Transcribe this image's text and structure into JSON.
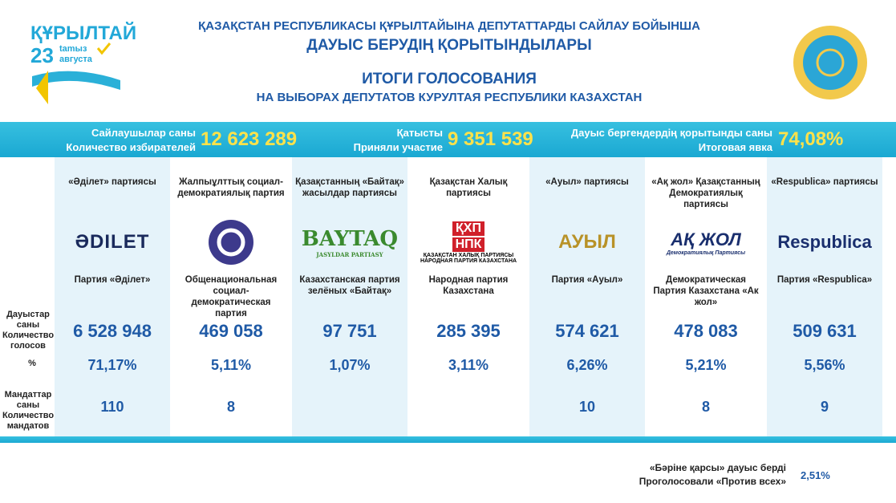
{
  "header": {
    "logo_title": "ҚҰРЫЛТАЙ",
    "logo_day": "23",
    "logo_month_kz": "tamыз",
    "logo_month_ru": "августа",
    "title_kz": [
      "ҚАЗАҚСТАН РЕСПУБЛИКАСЫ ҚҰРЫЛТАЙЫНА ДЕПУТАТТАРДЫ САЙЛАУ БОЙЫНША",
      "ДАУЫС БЕРУДІҢ ҚОРЫТЫНДЫЛАРЫ"
    ],
    "title_ru": [
      "ИТОГИ ГОЛОСОВАНИЯ",
      "НА ВЫБОРАХ ДЕПУТАТОВ КУРУЛТАЯ РЕСПУБЛИКИ КАЗАХСТАН"
    ]
  },
  "stats": [
    {
      "label_kz": "Сайлаушылар саны",
      "label_ru": "Количество избирателей",
      "value": "12 623 289"
    },
    {
      "label_kz": "Қатысты",
      "label_ru": "Приняли участие",
      "value": "9 351 539"
    },
    {
      "label_kz": "Дауыс бергендердің қорытынды саны",
      "label_ru": "Итоговая явка",
      "value": "74,08%"
    }
  ],
  "row_labels": {
    "votes_kz": "Дауыстар саны",
    "votes_ru": "Количество голосов",
    "percent": "%",
    "mandates_kz": "Мандаттар саны",
    "mandates_ru": "Количество мандатов"
  },
  "parties": [
    {
      "name_kz": "«Әділет» партиясы",
      "logo": {
        "marks": [
          "ƏDILET"
        ]
      },
      "name_ru": "Партия «Әділет»",
      "votes": "6 528 948",
      "percent": "71,17%",
      "mandates": "110"
    },
    {
      "name_kz": "Жалпыұлттық социал-демократиялық партия",
      "name_ru": "Общенациональная социал-демократическая партия",
      "votes": "469 058",
      "percent": "5,11%",
      "mandates": "8"
    },
    {
      "name_kz": "Қазақстанның «Байтақ» жасылдар партиясы",
      "logo": {
        "marks": [
          "BAYTAQ"
        ],
        "sub": [
          "JASYLDAR PARTIASY"
        ]
      },
      "name_ru": "Казахстанская партия зелёных «Байтақ»",
      "votes": "97 751",
      "percent": "1,07%"
    },
    {
      "name_kz": "Қазақстан Халық партиясы",
      "logo": {
        "marks": [
          "ҚХП",
          "НПК"
        ],
        "sub": [
          "ҚАЗАҚСТАН ХАЛЫҚ ПАРТИЯСЫ",
          "НАРОДНАЯ ПАРТИЯ КАЗАХСТАНА"
        ]
      },
      "name_ru": "Народная партия Казахстана",
      "votes": "285 395",
      "percent": "3,11%"
    },
    {
      "name_kz": "«Ауыл» партиясы",
      "logo": {
        "marks": [
          "АУЫЛ"
        ]
      },
      "name_ru": "Партия «Ауыл»",
      "votes": "574 621",
      "percent": "6,26%",
      "mandates": "10"
    },
    {
      "name_kz": "«Ақ жол» Қазақстанның Демократиялық партиясы",
      "logo": {
        "marks": [
          "АҚ ЖОЛ"
        ],
        "sub": [
          "Демократиялық Партиясы"
        ]
      },
      "name_ru": "Демократическая Партия Казахстана «Ак жол»",
      "votes": "478 083",
      "percent": "5,21%",
      "mandates": "8"
    },
    {
      "name_kz": "«Respublica» партиясы",
      "logo": {
        "marks": [
          "Respublica"
        ]
      },
      "name_ru": "Партия «Respublica»",
      "votes": "509 631",
      "percent": "5,56%",
      "mandates": "9"
    }
  ],
  "against_all": {
    "label_kz": "«Бәріне қарсы» дауыс берді",
    "label_ru": "Проголосовали «Против всех»",
    "value": "2,51%"
  }
}
